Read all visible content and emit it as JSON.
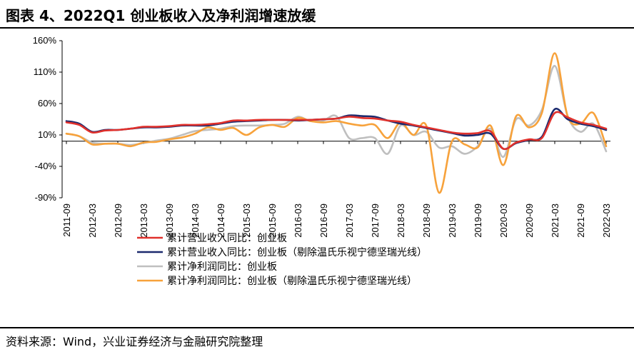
{
  "title": "图表 4、2022Q1 创业板收入及净利润增速放缓",
  "source": "资料来源：Wind，兴业证券经济与金融研究院整理",
  "chart_data": {
    "type": "line",
    "ylim": [
      -90,
      160
    ],
    "yticks": [
      "160%",
      "110%",
      "60%",
      "10%",
      "-40%",
      "-90%"
    ],
    "ytick_values": [
      160,
      110,
      60,
      10,
      -40,
      -90
    ],
    "categories": [
      "2011-09",
      "2011-12",
      "2012-03",
      "2012-06",
      "2012-09",
      "2012-12",
      "2013-03",
      "2013-06",
      "2013-09",
      "2013-12",
      "2014-03",
      "2014-06",
      "2014-09",
      "2014-12",
      "2015-03",
      "2015-06",
      "2015-09",
      "2015-12",
      "2016-03",
      "2016-06",
      "2016-09",
      "2016-12",
      "2017-03",
      "2017-06",
      "2017-09",
      "2017-12",
      "2018-03",
      "2018-06",
      "2018-09",
      "2018-12",
      "2019-03",
      "2019-06",
      "2019-09",
      "2019-12",
      "2020-03",
      "2020-06",
      "2020-09",
      "2020-12",
      "2021-03",
      "2021-06",
      "2021-09",
      "2021-12",
      "2022-03"
    ],
    "xtick_labels": [
      "2011-09",
      "2012-03",
      "2012-09",
      "2013-03",
      "2013-09",
      "2014-03",
      "2014-09",
      "2015-03",
      "2015-09",
      "2016-03",
      "2016-09",
      "2017-03",
      "2017-09",
      "2018-03",
      "2018-09",
      "2019-03",
      "2019-09",
      "2020-03",
      "2020-09",
      "2021-03",
      "2021-09",
      "2022-03"
    ],
    "grid": false,
    "legend_position": "bottom",
    "series": [
      {
        "name": "累计营业收入同比：创业板",
        "color": "#e0312c",
        "values": [
          30,
          26,
          14,
          17,
          18,
          20,
          23,
          23,
          24,
          26,
          26,
          27,
          29,
          33,
          33,
          34,
          34,
          34,
          34,
          34,
          35,
          36,
          39,
          37,
          36,
          33,
          31,
          26,
          22,
          18,
          14,
          12,
          13,
          16,
          -12,
          -2,
          3,
          5,
          45,
          38,
          30,
          26,
          20
        ]
      },
      {
        "name": "累计营业收入同比：创业板（剔除温氏乐视宁德坚瑞光线）",
        "color": "#1c2a6e",
        "values": [
          32,
          28,
          15,
          18,
          18,
          20,
          22,
          22,
          23,
          25,
          25,
          25,
          28,
          31,
          32,
          33,
          34,
          34,
          33,
          34,
          35,
          36,
          41,
          40,
          39,
          33,
          28,
          25,
          21,
          17,
          13,
          9,
          10,
          12,
          -12,
          -3,
          2,
          7,
          51,
          35,
          28,
          24,
          18
        ]
      },
      {
        "name": "累计净利润同比：创业板",
        "color": "#bfbfbf",
        "values": [
          12,
          8,
          -2,
          -4,
          -4,
          -6,
          -3,
          1,
          4,
          10,
          16,
          18,
          20,
          24,
          25,
          25,
          26,
          28,
          39,
          32,
          33,
          40,
          5,
          5,
          5,
          -20,
          25,
          10,
          15,
          -10,
          -8,
          -20,
          -8,
          20,
          -25,
          35,
          25,
          50,
          120,
          40,
          15,
          28,
          -16
        ]
      },
      {
        "name": "累计净利润同比：创业板（剔除温氏乐视宁德坚瑞光线）",
        "color": "#f7a23b",
        "values": [
          12,
          8,
          -5,
          -4,
          -4,
          -8,
          -2,
          -1,
          3,
          6,
          12,
          22,
          18,
          21,
          10,
          22,
          26,
          23,
          37,
          32,
          30,
          32,
          28,
          25,
          26,
          5,
          30,
          10,
          25,
          -82,
          0,
          -5,
          -10,
          25,
          -38,
          40,
          22,
          45,
          140,
          40,
          28,
          45,
          -8
        ]
      }
    ]
  }
}
